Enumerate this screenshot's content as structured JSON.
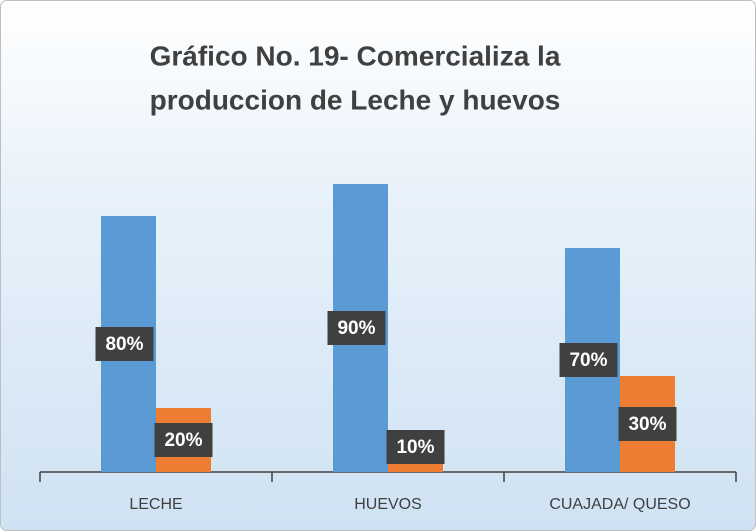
{
  "chart_data": {
    "type": "bar",
    "title": [
      "Gráfico No. 19- Comercializa la",
      "produccion de Leche y huevos"
    ],
    "categories": [
      "LECHE",
      "HUEVOS",
      "CUAJADA/ QUESO"
    ],
    "series": [
      {
        "color": "#5b9bd5",
        "values": [
          80,
          90,
          70
        ],
        "value_labels": [
          "80%",
          "90%",
          "70%"
        ]
      },
      {
        "color": "#ed7d31",
        "values": [
          20,
          10,
          30
        ],
        "value_labels": [
          "20%",
          "10%",
          "30%"
        ]
      }
    ],
    "ylim": [
      0,
      100
    ]
  }
}
